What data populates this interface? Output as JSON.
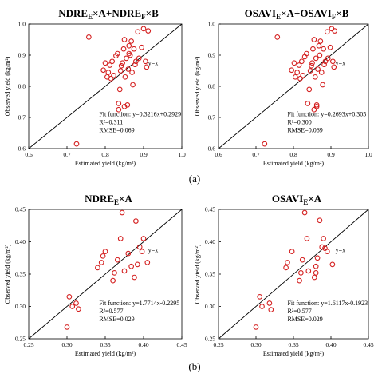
{
  "colors": {
    "point": "#d42020",
    "line": "#000000",
    "axis": "#000000"
  },
  "panel_labels": [
    "(a)",
    "(b)"
  ],
  "chart_data": [
    {
      "type": "scatter",
      "title_parts": [
        [
          "NDRE",
          "E",
          "×A+NDRE",
          "F",
          "×B"
        ]
      ],
      "xlabel": "Estimated yield (kg/m²)",
      "ylabel": "Observed yield (kg/m²)",
      "xlim": [
        0.6,
        1.0
      ],
      "ylim": [
        0.6,
        1.0
      ],
      "xticks": [
        "0.6",
        "0.7",
        "0.8",
        "0.9",
        "1.0"
      ],
      "yticks": [
        "0.6",
        "0.7",
        "0.8",
        "0.9",
        "1.0"
      ],
      "line_label": "y=x",
      "fit_function": "Fit function: y=0.3216x+0.2929",
      "r2": "R²=0.311",
      "rmse": "RMSE=0.069",
      "points": [
        [
          0.725,
          0.615
        ],
        [
          0.757,
          0.958
        ],
        [
          0.795,
          0.852
        ],
        [
          0.8,
          0.875
        ],
        [
          0.805,
          0.83
        ],
        [
          0.808,
          0.845
        ],
        [
          0.812,
          0.868
        ],
        [
          0.815,
          0.825
        ],
        [
          0.818,
          0.88
        ],
        [
          0.822,
          0.835
        ],
        [
          0.828,
          0.898
        ],
        [
          0.832,
          0.905
        ],
        [
          0.835,
          0.745
        ],
        [
          0.838,
          0.79
        ],
        [
          0.84,
          0.85
        ],
        [
          0.842,
          0.866
        ],
        [
          0.845,
          0.875
        ],
        [
          0.848,
          0.92
        ],
        [
          0.85,
          0.95
        ],
        [
          0.852,
          0.83
        ],
        [
          0.855,
          0.89
        ],
        [
          0.858,
          0.74
        ],
        [
          0.86,
          0.855
        ],
        [
          0.862,
          0.93
        ],
        [
          0.865,
          0.9
        ],
        [
          0.868,
          0.945
        ],
        [
          0.87,
          0.845
        ],
        [
          0.872,
          0.805
        ],
        [
          0.875,
          0.92
        ],
        [
          0.878,
          0.87
        ],
        [
          0.88,
          0.88
        ],
        [
          0.885,
          0.975
        ],
        [
          0.888,
          0.89
        ],
        [
          0.895,
          0.925
        ],
        [
          0.9,
          0.985
        ],
        [
          0.905,
          0.88
        ],
        [
          0.908,
          0.862
        ],
        [
          0.912,
          0.978
        ],
        [
          0.835,
          0.725
        ],
        [
          0.85,
          0.735
        ],
        [
          0.862,
          0.905
        ]
      ]
    },
    {
      "type": "scatter",
      "title_parts": [
        [
          "OSAVI",
          "E",
          "×A+OSAVI",
          "F",
          "×B"
        ]
      ],
      "xlabel": "Estimated yield (kg/m²)",
      "ylabel": "Observed yield (kg/m²)",
      "xlim": [
        0.6,
        1.0
      ],
      "ylim": [
        0.6,
        1.0
      ],
      "xticks": [
        "0.6",
        "0.7",
        "0.8",
        "0.9",
        "1.0"
      ],
      "yticks": [
        "0.6",
        "0.7",
        "0.8",
        "0.9",
        "1.0"
      ],
      "line_label": "y=x",
      "fit_function": "Fit function: y=0.2693x+0.305",
      "r2": "R²=0.300",
      "rmse": "RMSE=0.069",
      "points": [
        [
          0.723,
          0.615
        ],
        [
          0.757,
          0.958
        ],
        [
          0.795,
          0.852
        ],
        [
          0.802,
          0.875
        ],
        [
          0.805,
          0.83
        ],
        [
          0.81,
          0.845
        ],
        [
          0.815,
          0.868
        ],
        [
          0.818,
          0.825
        ],
        [
          0.822,
          0.88
        ],
        [
          0.825,
          0.835
        ],
        [
          0.83,
          0.895
        ],
        [
          0.835,
          0.905
        ],
        [
          0.838,
          0.745
        ],
        [
          0.842,
          0.79
        ],
        [
          0.845,
          0.85
        ],
        [
          0.848,
          0.866
        ],
        [
          0.85,
          0.875
        ],
        [
          0.852,
          0.92
        ],
        [
          0.855,
          0.95
        ],
        [
          0.858,
          0.83
        ],
        [
          0.86,
          0.89
        ],
        [
          0.862,
          0.74
        ],
        [
          0.865,
          0.855
        ],
        [
          0.868,
          0.93
        ],
        [
          0.87,
          0.9
        ],
        [
          0.872,
          0.945
        ],
        [
          0.875,
          0.845
        ],
        [
          0.878,
          0.805
        ],
        [
          0.88,
          0.92
        ],
        [
          0.882,
          0.87
        ],
        [
          0.885,
          0.88
        ],
        [
          0.89,
          0.975
        ],
        [
          0.892,
          0.89
        ],
        [
          0.898,
          0.925
        ],
        [
          0.902,
          0.985
        ],
        [
          0.905,
          0.88
        ],
        [
          0.908,
          0.862
        ],
        [
          0.91,
          0.978
        ],
        [
          0.855,
          0.725
        ],
        [
          0.862,
          0.735
        ]
      ]
    },
    {
      "type": "scatter",
      "title_parts": [
        [
          "NDRE",
          "E",
          "×A"
        ]
      ],
      "xlabel": "Estimated yield (kg/m²)",
      "ylabel": "Observed yield (kg/m²)",
      "xlim": [
        0.25,
        0.45
      ],
      "ylim": [
        0.25,
        0.45
      ],
      "xticks": [
        "0.25",
        "0.30",
        "0.35",
        "0.40",
        "0.45"
      ],
      "yticks": [
        "0.25",
        "0.30",
        "0.35",
        "0.40",
        "0.45"
      ],
      "line_label": "y=x",
      "fit_function": "Fit function: y=1.7714x-0.2295",
      "r2": "R²=0.577",
      "rmse": "RMSE=0.029",
      "points": [
        [
          0.3,
          0.268
        ],
        [
          0.303,
          0.315
        ],
        [
          0.307,
          0.3
        ],
        [
          0.312,
          0.305
        ],
        [
          0.315,
          0.296
        ],
        [
          0.34,
          0.36
        ],
        [
          0.345,
          0.368
        ],
        [
          0.347,
          0.378
        ],
        [
          0.35,
          0.385
        ],
        [
          0.36,
          0.34
        ],
        [
          0.362,
          0.352
        ],
        [
          0.366,
          0.372
        ],
        [
          0.37,
          0.405
        ],
        [
          0.372,
          0.445
        ],
        [
          0.375,
          0.355
        ],
        [
          0.38,
          0.382
        ],
        [
          0.384,
          0.362
        ],
        [
          0.388,
          0.345
        ],
        [
          0.39,
          0.432
        ],
        [
          0.392,
          0.365
        ],
        [
          0.395,
          0.392
        ],
        [
          0.398,
          0.385
        ],
        [
          0.4,
          0.405
        ],
        [
          0.405,
          0.368
        ]
      ]
    },
    {
      "type": "scatter",
      "title_parts": [
        [
          "OSAVI",
          "E",
          "×A"
        ]
      ],
      "xlabel": "Estimated yield (kg/m²)",
      "ylabel": "Observed yield (kg/m²)",
      "xlim": [
        0.25,
        0.45
      ],
      "ylim": [
        0.25,
        0.45
      ],
      "xticks": [
        "0.25",
        "0.30",
        "0.35",
        "0.40",
        "0.45"
      ],
      "yticks": [
        "0.25",
        "0.30",
        "0.35",
        "0.40",
        "0.45"
      ],
      "line_label": "y=x",
      "fit_function": "Fit function: y=1.6117x-0.1923",
      "r2": "R²=0.577",
      "rmse": "RMSE=0.029",
      "points": [
        [
          0.3,
          0.268
        ],
        [
          0.305,
          0.315
        ],
        [
          0.308,
          0.3
        ],
        [
          0.318,
          0.305
        ],
        [
          0.32,
          0.295
        ],
        [
          0.34,
          0.36
        ],
        [
          0.342,
          0.368
        ],
        [
          0.348,
          0.385
        ],
        [
          0.358,
          0.34
        ],
        [
          0.36,
          0.352
        ],
        [
          0.362,
          0.372
        ],
        [
          0.365,
          0.445
        ],
        [
          0.368,
          0.405
        ],
        [
          0.37,
          0.355
        ],
        [
          0.378,
          0.345
        ],
        [
          0.38,
          0.362
        ],
        [
          0.382,
          0.375
        ],
        [
          0.385,
          0.433
        ],
        [
          0.388,
          0.392
        ],
        [
          0.39,
          0.405
        ],
        [
          0.395,
          0.385
        ],
        [
          0.402,
          0.365
        ],
        [
          0.38,
          0.352
        ],
        [
          0.392,
          0.39
        ]
      ]
    }
  ]
}
